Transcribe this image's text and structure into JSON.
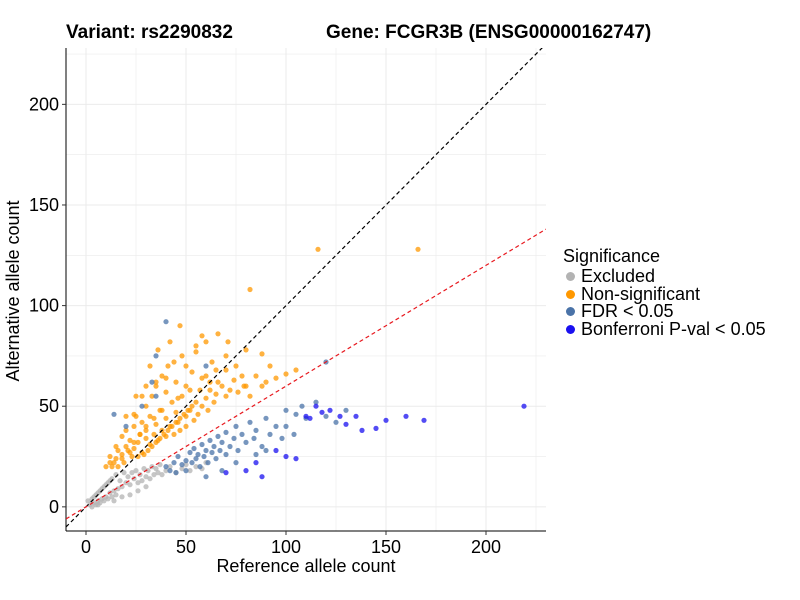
{
  "header": {
    "variant": "Variant: rs2290832",
    "gene": "Gene: FCGR3B (ENSG00000162747)"
  },
  "legend": {
    "title": "Significance",
    "items": [
      {
        "label": "Excluded",
        "color": "#b3b3b3"
      },
      {
        "label": "Non-significant",
        "color": "#ff9800"
      },
      {
        "label": "FDR < 0.05",
        "color": "#4a73a8"
      },
      {
        "label": "Bonferroni P-val < 0.05",
        "color": "#1a10f0"
      }
    ]
  },
  "chart_data": {
    "type": "scatter",
    "title": "",
    "xlabel": "Reference allele count",
    "ylabel": "Alternative allele count",
    "xlim": [
      -10,
      230
    ],
    "ylim": [
      -12,
      228
    ],
    "xticks": [
      0,
      50,
      100,
      150,
      200
    ],
    "yticks": [
      0,
      50,
      100,
      150,
      200
    ],
    "grid": true,
    "legend_position": "right",
    "reference_lines": [
      {
        "name": "y = x",
        "slope": 1,
        "intercept": 0,
        "color": "#000000",
        "style": "dashed"
      },
      {
        "name": "fitted",
        "slope": 0.6,
        "intercept": 0,
        "color": "#e8191f",
        "style": "dashed"
      }
    ],
    "series": [
      {
        "name": "Excluded",
        "color": "#b3b3b3",
        "points": [
          [
            2,
            1
          ],
          [
            3,
            4
          ],
          [
            4,
            2
          ],
          [
            5,
            6
          ],
          [
            6,
            3
          ],
          [
            7,
            8
          ],
          [
            8,
            4
          ],
          [
            9,
            10
          ],
          [
            10,
            5
          ],
          [
            11,
            12
          ],
          [
            12,
            7
          ],
          [
            13,
            14
          ],
          [
            14,
            8
          ],
          [
            15,
            16
          ],
          [
            16,
            9
          ],
          [
            17,
            13
          ],
          [
            18,
            10
          ],
          [
            19,
            17
          ],
          [
            20,
            12
          ],
          [
            21,
            15
          ],
          [
            22,
            11
          ],
          [
            23,
            17
          ],
          [
            24,
            14
          ],
          [
            25,
            18
          ],
          [
            26,
            12
          ],
          [
            27,
            16
          ],
          [
            28,
            13
          ],
          [
            29,
            19
          ],
          [
            30,
            15
          ],
          [
            31,
            18
          ],
          [
            32,
            14
          ],
          [
            33,
            20
          ],
          [
            34,
            16
          ],
          [
            35,
            19
          ],
          [
            36,
            17
          ],
          [
            37,
            21
          ],
          [
            38,
            16
          ],
          [
            40,
            18
          ],
          [
            42,
            20
          ],
          [
            45,
            17
          ],
          [
            48,
            19
          ],
          [
            50,
            21
          ],
          [
            52,
            18
          ],
          [
            55,
            20
          ],
          [
            58,
            19
          ],
          [
            60,
            22
          ],
          [
            3,
            0
          ],
          [
            5,
            1
          ],
          [
            7,
            2
          ],
          [
            9,
            3
          ],
          [
            11,
            4
          ],
          [
            13,
            5
          ],
          [
            15,
            6
          ],
          [
            4,
            5
          ],
          [
            6,
            7
          ],
          [
            8,
            9
          ],
          [
            10,
            11
          ],
          [
            12,
            13
          ],
          [
            1,
            3
          ],
          [
            6,
            1
          ],
          [
            14,
            3
          ],
          [
            18,
            5
          ],
          [
            22,
            6
          ],
          [
            26,
            8
          ],
          [
            30,
            10
          ]
        ]
      },
      {
        "name": "Non-significant",
        "color": "#ff9800",
        "points": [
          [
            10,
            20
          ],
          [
            12,
            25
          ],
          [
            14,
            22
          ],
          [
            15,
            30
          ],
          [
            16,
            28
          ],
          [
            18,
            35
          ],
          [
            18,
            24
          ],
          [
            20,
            30
          ],
          [
            20,
            38
          ],
          [
            22,
            27
          ],
          [
            22,
            33
          ],
          [
            24,
            40
          ],
          [
            24,
            29
          ],
          [
            25,
            45
          ],
          [
            26,
            32
          ],
          [
            27,
            36
          ],
          [
            28,
            42
          ],
          [
            28,
            27
          ],
          [
            30,
            34
          ],
          [
            30,
            50
          ],
          [
            30,
            38
          ],
          [
            32,
            31
          ],
          [
            32,
            45
          ],
          [
            33,
            55
          ],
          [
            34,
            36
          ],
          [
            35,
            41
          ],
          [
            35,
            60
          ],
          [
            36,
            33
          ],
          [
            37,
            48
          ],
          [
            38,
            38
          ],
          [
            38,
            65
          ],
          [
            40,
            35
          ],
          [
            40,
            44
          ],
          [
            40,
            57
          ],
          [
            41,
            70
          ],
          [
            42,
            40
          ],
          [
            43,
            52
          ],
          [
            44,
            36
          ],
          [
            45,
            47
          ],
          [
            45,
            62
          ],
          [
            46,
            42
          ],
          [
            47,
            38
          ],
          [
            48,
            55
          ],
          [
            48,
            75
          ],
          [
            50,
            45
          ],
          [
            50,
            60
          ],
          [
            50,
            40
          ],
          [
            52,
            48
          ],
          [
            53,
            67
          ],
          [
            54,
            43
          ],
          [
            55,
            52
          ],
          [
            55,
            80
          ],
          [
            56,
            46
          ],
          [
            57,
            58
          ],
          [
            58,
            50
          ],
          [
            60,
            54
          ],
          [
            60,
            65
          ],
          [
            61,
            48
          ],
          [
            62,
            58
          ],
          [
            63,
            72
          ],
          [
            64,
            52
          ],
          [
            65,
            56
          ],
          [
            66,
            62
          ],
          [
            68,
            60
          ],
          [
            70,
            55
          ],
          [
            70,
            68
          ],
          [
            72,
            58
          ],
          [
            74,
            63
          ],
          [
            75,
            70
          ],
          [
            76,
            57
          ],
          [
            78,
            65
          ],
          [
            80,
            60
          ],
          [
            82,
            55
          ],
          [
            85,
            65
          ],
          [
            88,
            60
          ],
          [
            90,
            62
          ],
          [
            95,
            64
          ],
          [
            100,
            66
          ],
          [
            105,
            68
          ],
          [
            28,
            55
          ],
          [
            32,
            70
          ],
          [
            36,
            78
          ],
          [
            42,
            82
          ],
          [
            47,
            90
          ],
          [
            35,
            62
          ],
          [
            44,
            72
          ],
          [
            24,
            46
          ],
          [
            55,
            77
          ],
          [
            60,
            82
          ],
          [
            82,
            108
          ],
          [
            80,
            78
          ],
          [
            79,
            60
          ],
          [
            70,
            75
          ],
          [
            65,
            68
          ],
          [
            62,
            62
          ],
          [
            58,
            64
          ],
          [
            52,
            58
          ],
          [
            46,
            54
          ],
          [
            38,
            48
          ],
          [
            34,
            44
          ],
          [
            30,
            40
          ],
          [
            27,
            36
          ],
          [
            24,
            32
          ],
          [
            21,
            28
          ],
          [
            18,
            26
          ],
          [
            15,
            24
          ],
          [
            13,
            20
          ],
          [
            12,
            22
          ],
          [
            16,
            20
          ],
          [
            19,
            22
          ],
          [
            23,
            25
          ],
          [
            26,
            25
          ],
          [
            29,
            26
          ],
          [
            31,
            28
          ],
          [
            33,
            30
          ],
          [
            35,
            32
          ],
          [
            37,
            34
          ],
          [
            39,
            36
          ],
          [
            41,
            38
          ],
          [
            43,
            40
          ],
          [
            45,
            42
          ],
          [
            47,
            44
          ],
          [
            49,
            46
          ],
          [
            51,
            48
          ],
          [
            53,
            50
          ],
          [
            20,
            45
          ],
          [
            25,
            55
          ],
          [
            30,
            60
          ],
          [
            40,
            64
          ],
          [
            50,
            70
          ],
          [
            116,
            128
          ],
          [
            166,
            128
          ],
          [
            88,
            76
          ],
          [
            92,
            70
          ],
          [
            71,
            82
          ],
          [
            66,
            86
          ],
          [
            58,
            85
          ]
        ]
      },
      {
        "name": "FDR < 0.05",
        "color": "#4a73a8",
        "points": [
          [
            40,
            20
          ],
          [
            42,
            18
          ],
          [
            44,
            22
          ],
          [
            45,
            17
          ],
          [
            46,
            25
          ],
          [
            48,
            21
          ],
          [
            50,
            23
          ],
          [
            50,
            18
          ],
          [
            52,
            27
          ],
          [
            53,
            22
          ],
          [
            54,
            29
          ],
          [
            55,
            24
          ],
          [
            56,
            26
          ],
          [
            57,
            20
          ],
          [
            58,
            31
          ],
          [
            59,
            25
          ],
          [
            60,
            28
          ],
          [
            61,
            22
          ],
          [
            62,
            33
          ],
          [
            63,
            27
          ],
          [
            64,
            30
          ],
          [
            65,
            24
          ],
          [
            66,
            35
          ],
          [
            67,
            28
          ],
          [
            68,
            32
          ],
          [
            70,
            26
          ],
          [
            70,
            37
          ],
          [
            72,
            30
          ],
          [
            74,
            34
          ],
          [
            75,
            40
          ],
          [
            76,
            28
          ],
          [
            78,
            36
          ],
          [
            80,
            32
          ],
          [
            82,
            42
          ],
          [
            84,
            34
          ],
          [
            85,
            38
          ],
          [
            88,
            30
          ],
          [
            90,
            44
          ],
          [
            92,
            36
          ],
          [
            95,
            40
          ],
          [
            98,
            34
          ],
          [
            100,
            48
          ],
          [
            105,
            46
          ],
          [
            108,
            50
          ],
          [
            110,
            44
          ],
          [
            115,
            52
          ],
          [
            120,
            45
          ],
          [
            125,
            42
          ],
          [
            130,
            48
          ],
          [
            40,
            92
          ],
          [
            35,
            75
          ],
          [
            35,
            55
          ],
          [
            33,
            62
          ],
          [
            28,
            50
          ],
          [
            20,
            40
          ],
          [
            14,
            46
          ],
          [
            120,
            72
          ],
          [
            60,
            70
          ],
          [
            100,
            40
          ],
          [
            104,
            36
          ],
          [
            60,
            15
          ],
          [
            68,
            18
          ],
          [
            75,
            22
          ],
          [
            85,
            26
          ],
          [
            90,
            28
          ]
        ]
      },
      {
        "name": "Bonferroni P-val < 0.05",
        "color": "#1a10f0",
        "points": [
          [
            110,
            45
          ],
          [
            115,
            50
          ],
          [
            118,
            47
          ],
          [
            122,
            48
          ],
          [
            127,
            45
          ],
          [
            130,
            41
          ],
          [
            135,
            45
          ],
          [
            138,
            38
          ],
          [
            145,
            39
          ],
          [
            95,
            28
          ],
          [
            100,
            25
          ],
          [
            105,
            24
          ],
          [
            85,
            22
          ],
          [
            88,
            15
          ],
          [
            70,
            17
          ],
          [
            80,
            18
          ],
          [
            150,
            43
          ],
          [
            160,
            45
          ],
          [
            169,
            43
          ],
          [
            219,
            50
          ],
          [
            112,
            44
          ]
        ]
      }
    ]
  }
}
